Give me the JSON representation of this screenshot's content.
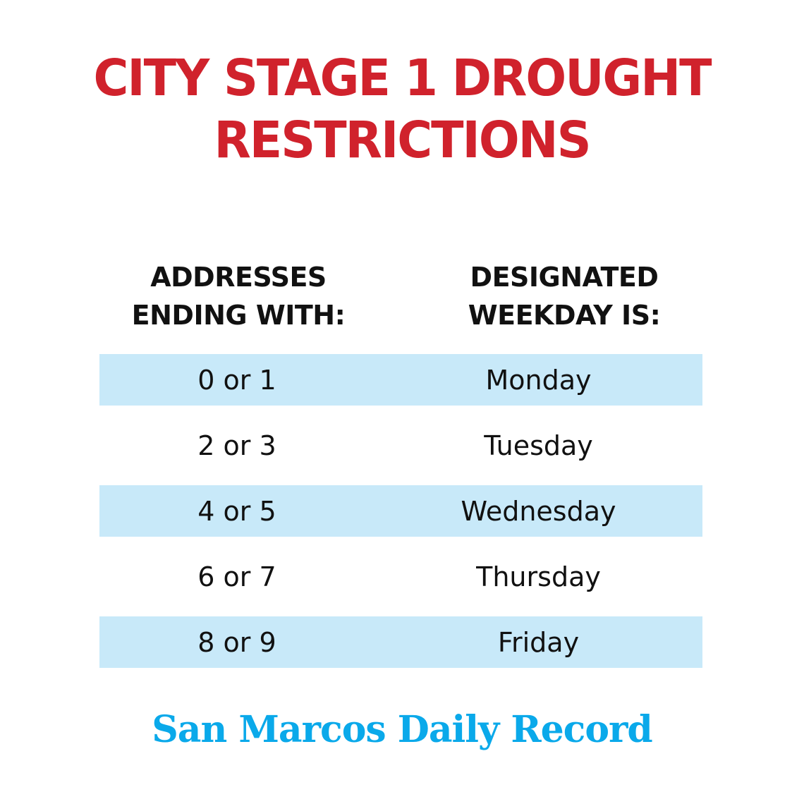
{
  "title": {
    "line1": "CITY STAGE 1 DROUGHT",
    "line2": "RESTRICTIONS",
    "color": "#d0222c"
  },
  "headers": {
    "address": {
      "line1": "ADDRESSES",
      "line2": "ENDING WITH:"
    },
    "weekday": {
      "line1": "DESIGNATED",
      "line2": "WEEKDAY IS:"
    }
  },
  "rows": [
    {
      "address": "0 or 1",
      "weekday": "Monday",
      "shaded": true
    },
    {
      "address": "2 or 3",
      "weekday": "Tuesday",
      "shaded": false
    },
    {
      "address": "4 or 5",
      "weekday": "Wednesday",
      "shaded": true
    },
    {
      "address": "6 or 7",
      "weekday": "Thursday",
      "shaded": false
    },
    {
      "address": "8 or 9",
      "weekday": "Friday",
      "shaded": true
    }
  ],
  "row_shade_color": "#c8e9f9",
  "logo": {
    "text": "San Marcos Daily Record",
    "color": "#0aa9ea"
  }
}
